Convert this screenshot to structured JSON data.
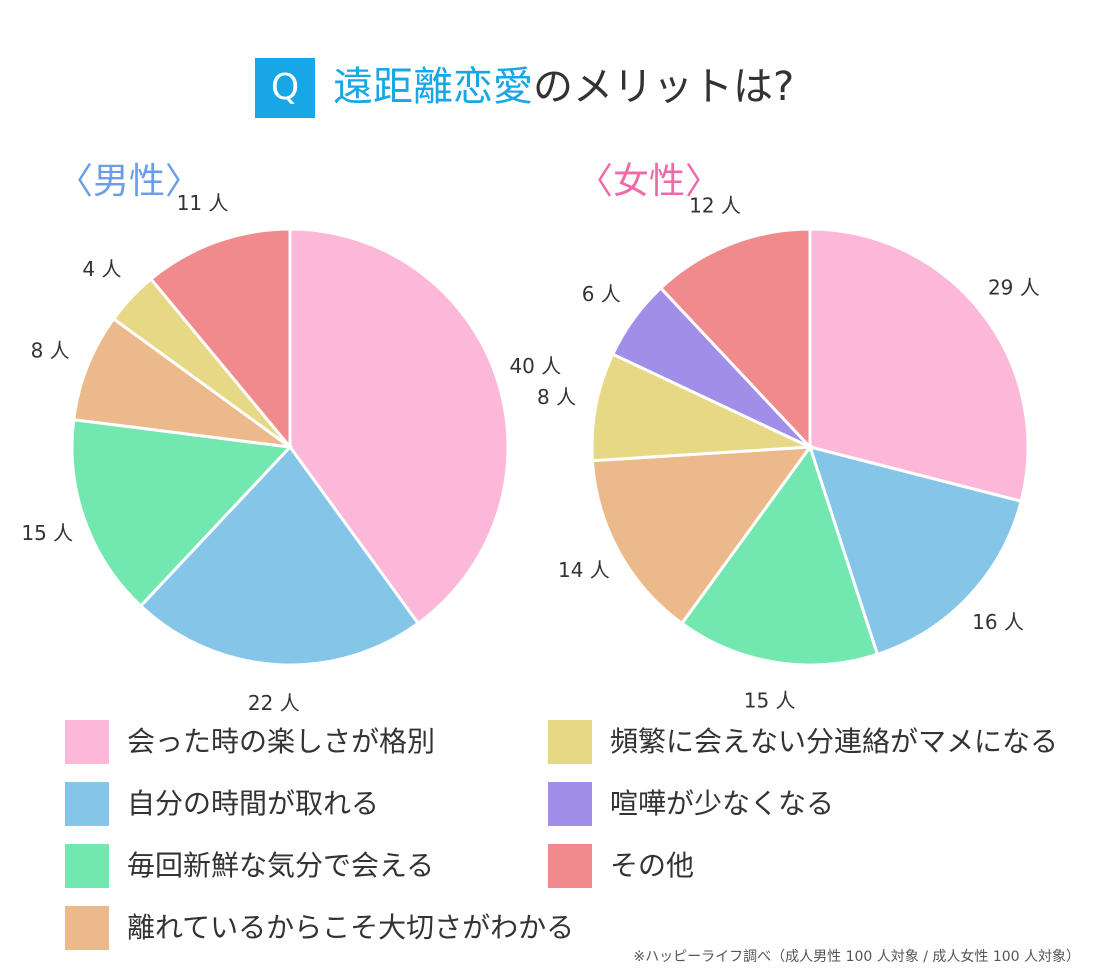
{
  "title": {
    "badge": "Q",
    "highlight": "遠距離恋愛",
    "text": "のメリットは?"
  },
  "chart_data": [
    {
      "type": "pie",
      "title": "〈男性〉",
      "title_color": "#6a9fe8",
      "categories": [
        "会った時の楽しさが格別",
        "自分の時間が取れる",
        "毎回新鮮な気分で会える",
        "離れているからこそ大切さがわかる",
        "頻繁に会えない分連絡がマメになる",
        "その他"
      ],
      "values": [
        40,
        22,
        15,
        8,
        4,
        11
      ],
      "value_labels": [
        "40 人",
        "22 人",
        "15 人",
        "8 人",
        "4 人",
        "11 人"
      ]
    },
    {
      "type": "pie",
      "title": "〈女性〉",
      "title_color": "#f06aa8",
      "categories": [
        "会った時の楽しさが格別",
        "自分の時間が取れる",
        "毎回新鮮な気分で会える",
        "離れているからこそ大切さがわかる",
        "頻繁に会えない分連絡がマメになる",
        "喧嘩が少なくなる",
        "その他"
      ],
      "values": [
        29,
        16,
        15,
        14,
        8,
        6,
        12
      ],
      "value_labels": [
        "29 人",
        "16 人",
        "15 人",
        "14 人",
        "8 人",
        "6 人",
        "12 人"
      ]
    }
  ],
  "legend": [
    {
      "name": "会った時の楽しさが格別",
      "color": "#fbb8d8"
    },
    {
      "name": "自分の時間が取れる",
      "color": "#85c6e8"
    },
    {
      "name": "毎回新鮮な気分で会える",
      "color": "#72e8b0"
    },
    {
      "name": "離れているからこそ大切さがわかる",
      "color": "#ecb98a"
    },
    {
      "name": "頻繁に会えない分連絡がマメになる",
      "color": "#e6d885"
    },
    {
      "name": "喧嘩が少なくなる",
      "color": "#a08ee8"
    },
    {
      "name": "その他",
      "color": "#f08a8c"
    }
  ],
  "note": "※ハッピーライフ調べ（成人男性 100 人対象 / 成人女性 100 人対象）"
}
